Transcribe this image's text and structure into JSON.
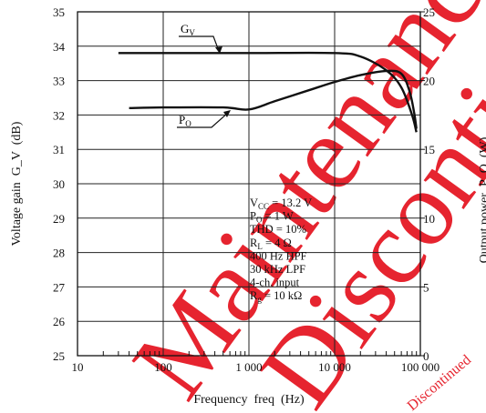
{
  "chart_data": {
    "type": "line",
    "xlabel": "Frequency  freq  (Hz)",
    "ylabel_left": "Voltage gain  G_V  (dB)",
    "ylabel_right": "Output power  P_O  (W)",
    "x_scale": "log",
    "xlim": [
      10,
      100000
    ],
    "ylim_left": [
      25,
      35
    ],
    "ylim_right": [
      0,
      25
    ],
    "grid": true,
    "x_ticks": [
      {
        "v": 10,
        "label": "10"
      },
      {
        "v": 100,
        "label": "100"
      },
      {
        "v": 1000,
        "label": "1 000"
      },
      {
        "v": 10000,
        "label": "10 000"
      },
      {
        "v": 100000,
        "label": "100 000"
      }
    ],
    "y_ticks_left": [
      "25",
      "26",
      "27",
      "28",
      "29",
      "30",
      "31",
      "32",
      "33",
      "34",
      "35"
    ],
    "y_ticks_right": [
      "0",
      "5",
      "10",
      "15",
      "20",
      "25"
    ],
    "series": [
      {
        "name": "G_V",
        "axis": "left",
        "x": [
          30,
          100,
          1000,
          10000,
          20000,
          40000,
          60000,
          80000,
          90000
        ],
        "y": [
          33.8,
          33.8,
          33.8,
          33.8,
          33.7,
          33.3,
          32.8,
          32.0,
          31.5
        ]
      },
      {
        "name": "P_O",
        "axis": "right",
        "x": [
          40,
          100,
          500,
          1000,
          2000,
          5000,
          10000,
          20000,
          40000,
          60000,
          75000,
          85000,
          90000
        ],
        "y": [
          18,
          18.05,
          18.05,
          17.9,
          18.5,
          19.3,
          19.9,
          20.4,
          20.7,
          20.5,
          19.2,
          17.6,
          16.5
        ]
      }
    ],
    "labels": {
      "gv_main": "G",
      "gv_sub": "V",
      "po_main": "P",
      "po_sub": "O"
    },
    "conditions": [
      {
        "main": "V",
        "sub": "CC",
        "rest": " = 13.2 V"
      },
      {
        "main": "P",
        "sub": "O",
        "rest": " = 1 W"
      },
      {
        "main": "",
        "sub": "",
        "rest": "THD = 10%"
      },
      {
        "main": "R",
        "sub": "L",
        "rest": " = 4 Ω"
      },
      {
        "main": "",
        "sub": "",
        "rest": "400 Hz HPF"
      },
      {
        "main": "",
        "sub": "",
        "rest": "30 kHz LPF"
      },
      {
        "main": "",
        "sub": "",
        "rest": "4-ch. input"
      },
      {
        "main": "R",
        "sub": "g",
        "rest": " = 10 kΩ"
      }
    ],
    "watermark": {
      "line1": "Maintenance",
      "line2": "Discontinued",
      "small": "Discontinued"
    },
    "colors": {
      "line": "#111111",
      "grid": "#222222",
      "watermark": "#e30613"
    }
  }
}
